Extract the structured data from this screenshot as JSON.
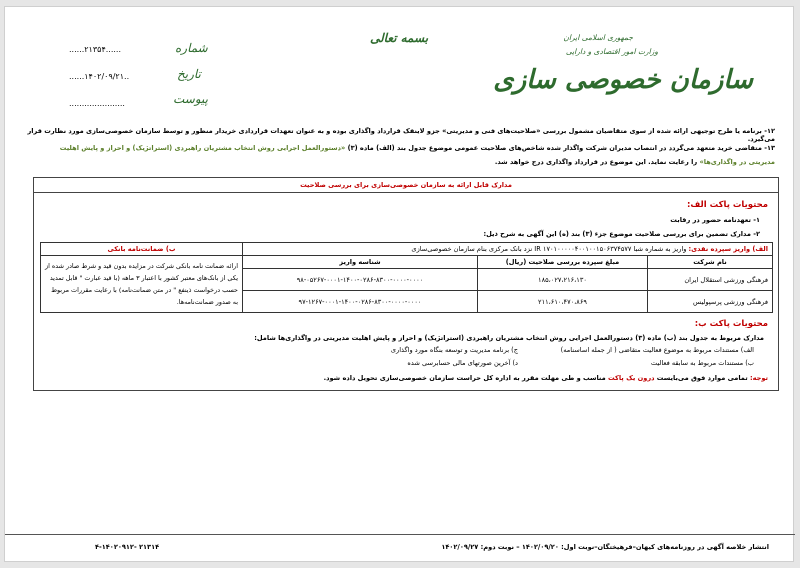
{
  "header": {
    "basmala": "بسمه تعالی",
    "gov_line1": "جمهوری اسلامی ایران",
    "gov_line2": "وزارت امور اقتصادی و دارایی",
    "org_logo": "سازمان خصوصی سازی",
    "number_label": "شماره",
    "number_value": "......۲۱۳۵۴......",
    "date_label": "تاریخ",
    "date_value": "......۱۴۰۲/۰۹/۲۱..",
    "attach_label": "پیوست",
    "attach_value": "......................"
  },
  "paragraphs": {
    "p12": "۱۲- برنامه یا طرح توجیهی ارائه شده از سوی متقاضیان مشمول بررسی «صلاحیت‌های فنی و مدیریتی» جزو لاینفک قرارداد واگذاری بوده و به عنوان تعهدات قراردادی خریدار منظور و توسط سازمان خصوصی‌سازی مورد نظارت قرار می‌گیرد.",
    "p13_a": "۱۳- متقاضی خرید متعهد می‌گردد در انتصاب مدیران شرکت واگذار شده شاخص‌های صلاحیت عمومی موضوع جدول بند (الف) ماده (۳) ",
    "p13_b": "«دستورالعمل اجرایی روش انتخاب مشتریان راهبردی (استراتژیک) و احراز و پایش اهلیت مدیریتی در واگذاری‌ها»",
    "p13_c": " را رعایت نماید. این موضوع در قرارداد واگذاری درج خواهد شد."
  },
  "box": {
    "title": "مدارک قابل ارائه به سازمان خصوصی‌سازی برای بررسی صلاحیت",
    "pack_a_title": "محتویات پاکت الف:",
    "pack_a_items": [
      "۱-   تعهدنامه حضور در رقابت",
      "۲-   مدارک تضمین برای بررسی صلاحیت موضوع جزء (۳) بند (ه) این آگهی به شرح ذیل:"
    ],
    "table": {
      "cash_label": "الف) واریز سپرده نقدی:",
      "cash_text": " واریز به شماره شبا IR ۱۷۰۱۰۰۰۰۰۴۰۰۱۰۰۱۵۰۶۳۷۴۵۷۷ نزد بانک مرکزی بنام سازمان خصوصی‌سازی",
      "guarantee_title": "ب) ضمانت‌نامه بانکی",
      "guarantee_text": "ارائه ضمانت نامه بانکی شرکت در مزایده بدون قید و شرط صادر شده از یکی از بانک‌های معتبر کشور با اعتبار ۳ ماهه (با قید عبارت \" قابل تمدید حسب درخواست ذینفع \" در متن ضمانت‌نامه) با رعایت مقررات مربوط به صدور ضمانت‌نامه‌ها.",
      "columns": [
        "نام شرکت",
        "مبلغ سپرده بررسی صلاحیت (ریال)",
        "شناسه واریز"
      ],
      "rows": [
        [
          "فرهنگی ورزشی استقلال ایران",
          "۱۸۵،۰۲۷،۲۱۶،۱۳۰",
          "۹۸-۰۵۲۶۷-۰۰۰۱-۱۴۰۰-۰۲۸۶-۸۳۰۰-۰۰۰۰-۰۰۰۰"
        ],
        [
          "فرهنگی ورزشی پرسپولیس",
          "۲۱۱،۶۱۰،۴۷۰،۸۶۹",
          "۹۷-۱۲۶۷-۰۰۰۱-۱۴۰۰-۰۲۸۶-۸۳۰۰-۰۰۰۰-۰۰۰۰"
        ]
      ]
    },
    "pack_b_title": "محتویات پاکت ب:",
    "pack_b_intro": "مدارک مربوط به جدول بند (ب) ماده (۳) دستورالعمل اجرایی روش انتخاب مشتریان راهبردی (استراتژیک) و احراز و پایش اهلیت مدیریتی در واگذاری‌ها شامل:",
    "pack_b_items": [
      "الف) مستندات مربوط به موضوع فعالیت متقاضی ( از جمله اساسنامه)",
      "ج) برنامه مدیریت و توسعه بنگاه مورد واگذاری",
      "ب) مستندات مربوط به سابقه فعالیت",
      "د) آخرین صورتهای مالی حسابرسی شده"
    ],
    "note_label": "توجه:",
    "note_a": " تمامی موارد فوق می‌بایست ",
    "note_b": "درون یک پاکت",
    "note_c": " مناسب و طی مهلت مقرر به اداره کل حراست سازمان خصوصی‌سازی تحویل داده شود."
  },
  "footer": {
    "publish": "انتشار خلاصه آگهی در روزنامه‌های کیهان–فرهیختگان–نوبت اول: ۱۴۰۲/۰۹/۲۰ – نوبت دوم: ۱۴۰۲/۰۹/۲۷",
    "code": "۴-۱۴۰۲۰۹۱۲- ۲۱۳۱۴"
  },
  "colors": {
    "green": "#2e6b2e",
    "red": "#c00000",
    "olive": "#5b7f2a"
  }
}
